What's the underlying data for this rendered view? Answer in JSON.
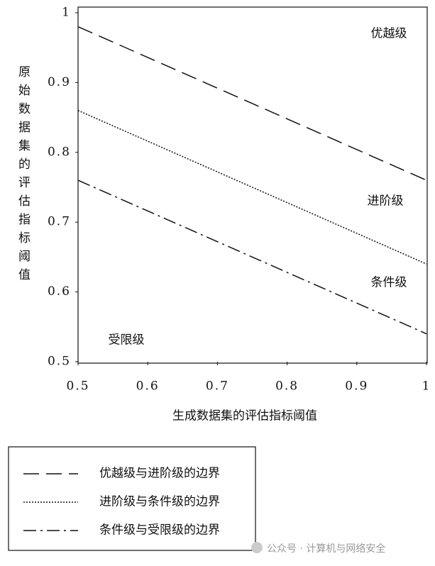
{
  "chart_data": {
    "type": "line",
    "x_label": "生成数据集的评估指标阈值",
    "y_label": "原始数据集的评估指标阈值",
    "x": [
      0.5,
      1
    ],
    "series": [
      {
        "name": "优越级与进阶级的边界",
        "color": "#111111",
        "style": "dashed",
        "values": [
          0.98,
          0.76
        ]
      },
      {
        "name": "进阶级与条件级的边界",
        "color": "#111111",
        "style": "dotted",
        "values": [
          0.86,
          0.64
        ]
      },
      {
        "name": "条件级与受限级的边界",
        "color": "#111111",
        "style": "dashdot",
        "values": [
          0.76,
          0.54
        ]
      }
    ],
    "annotations": [
      "优越级",
      "进阶级",
      "条件级",
      "受限级"
    ],
    "xlim": [
      0.5,
      1
    ],
    "xticks": [
      0.5,
      0.6,
      0.7,
      0.8,
      0.9,
      1
    ],
    "ylim": [
      0.5,
      1
    ],
    "yticks": [
      0.5,
      0.6,
      0.7,
      0.8,
      0.9,
      1
    ]
  },
  "watermark": "公众号 · 计算机与网络安全"
}
